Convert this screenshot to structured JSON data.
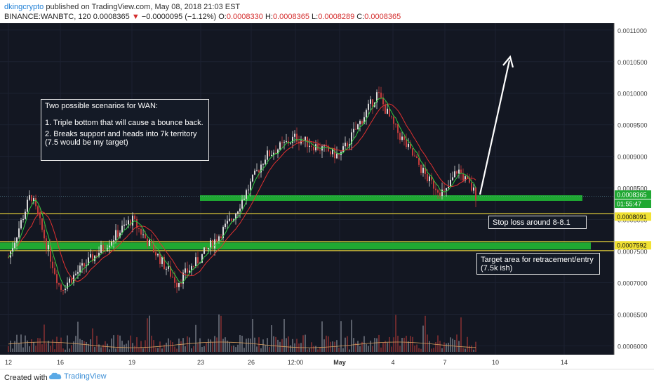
{
  "header": {
    "user": "dkingcrypto",
    "published": "published on TradingView.com, May 08, 2018 21:03 EST",
    "symbol": "BINANCE:WANBTC, 120",
    "last": "0.0008365",
    "change_arrow": "▼",
    "change": "−0.0000095 (−1.12%)",
    "o_label": "O:",
    "o": "0.0008330",
    "h_label": "H:",
    "h": "0.0008365",
    "l_label": "L:",
    "l": "0.0008289",
    "c_label": "C:",
    "c": "0.0008365"
  },
  "annotations": {
    "scenarios": {
      "title": "Two possible scenarios for WAN:",
      "line1": "1. Triple bottom that will cause a bounce back.",
      "line2": "2. Breaks support and heads into 7k territory (7.5 would be my target)"
    },
    "stoploss": "Stop loss around 8-8.1",
    "target": "Target area for retracement/entry (7.5k ish)"
  },
  "price_tags": {
    "current": "0.0008365",
    "countdown": "01:55:47",
    "stop": "0.0008091",
    "target": "0.0007592"
  },
  "footer": {
    "created_with": "Created with",
    "brand": "TradingView"
  },
  "colors": {
    "background": "#131722",
    "green_zone": "#1fa832",
    "yellow_line": "#e8d33a",
    "up_candle": "#d8d8d8",
    "down_candle": "#c23b3b",
    "ma_fast": "#2ecc40",
    "ma_slow": "#e03030"
  },
  "chart_data": {
    "type": "candlestick",
    "y_ticks": [
      "0.0011000",
      "0.0010500",
      "0.0010000",
      "0.0009500",
      "0.0009000",
      "0.0008500",
      "0.0008000",
      "0.0007500",
      "0.0007000",
      "0.0006500",
      "0.0006000"
    ],
    "ylim": [
      0.000596,
      0.001102
    ],
    "x_ticks": [
      "12",
      "16",
      "19",
      "23",
      "26",
      "12:00",
      "May",
      "4",
      "7",
      "10",
      "14"
    ],
    "levels": [
      {
        "type": "support_zone",
        "value": 0.000834
      },
      {
        "type": "stop_line",
        "value": 0.0008091
      },
      {
        "type": "target_zone",
        "value": 0.0007592
      },
      {
        "type": "target_line",
        "value": 0.0007592
      }
    ],
    "key_points": [
      {
        "x": "12",
        "price": 0.00074
      },
      {
        "x": "13",
        "price": 0.00084
      },
      {
        "x": "16",
        "price": 0.00069
      },
      {
        "x": "19",
        "price": 0.0008
      },
      {
        "x": "21",
        "price": 0.0007
      },
      {
        "x": "23",
        "price": 0.00074
      },
      {
        "x": "25",
        "price": 0.0008
      },
      {
        "x": "27",
        "price": 0.0009
      },
      {
        "x": "12:00",
        "price": 0.00093
      },
      {
        "x": "May",
        "price": 0.0009
      },
      {
        "x": "3",
        "price": 0.001
      },
      {
        "x": "4",
        "price": 0.00095
      },
      {
        "x": "6",
        "price": 0.00086
      },
      {
        "x": "7",
        "price": 0.00084
      },
      {
        "x": "8",
        "price": 0.00088
      },
      {
        "x": "9",
        "price": 0.0008365
      }
    ]
  }
}
